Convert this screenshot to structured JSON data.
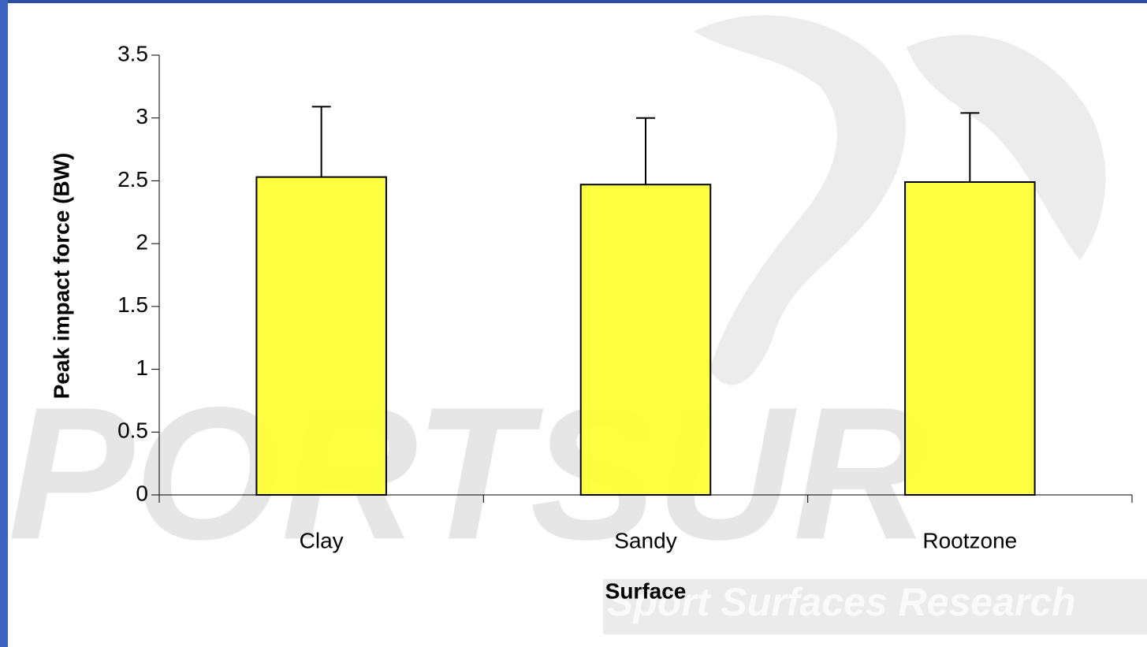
{
  "chart_data": {
    "type": "bar",
    "x_label": "Surface",
    "y_label": "Peak impact force (BW)",
    "categories": [
      "Clay",
      "Sandy",
      "Rootzone"
    ],
    "values": [
      2.53,
      2.47,
      2.49
    ],
    "errors": [
      0.56,
      0.53,
      0.55
    ],
    "color": "#ffff33",
    "ylim": [
      0,
      3.5
    ],
    "yticks": [
      0,
      0.5,
      1,
      1.5,
      2,
      2.5,
      3,
      3.5
    ],
    "annotations": [
      "PORTSUR",
      "Sport Surfaces Research"
    ]
  }
}
